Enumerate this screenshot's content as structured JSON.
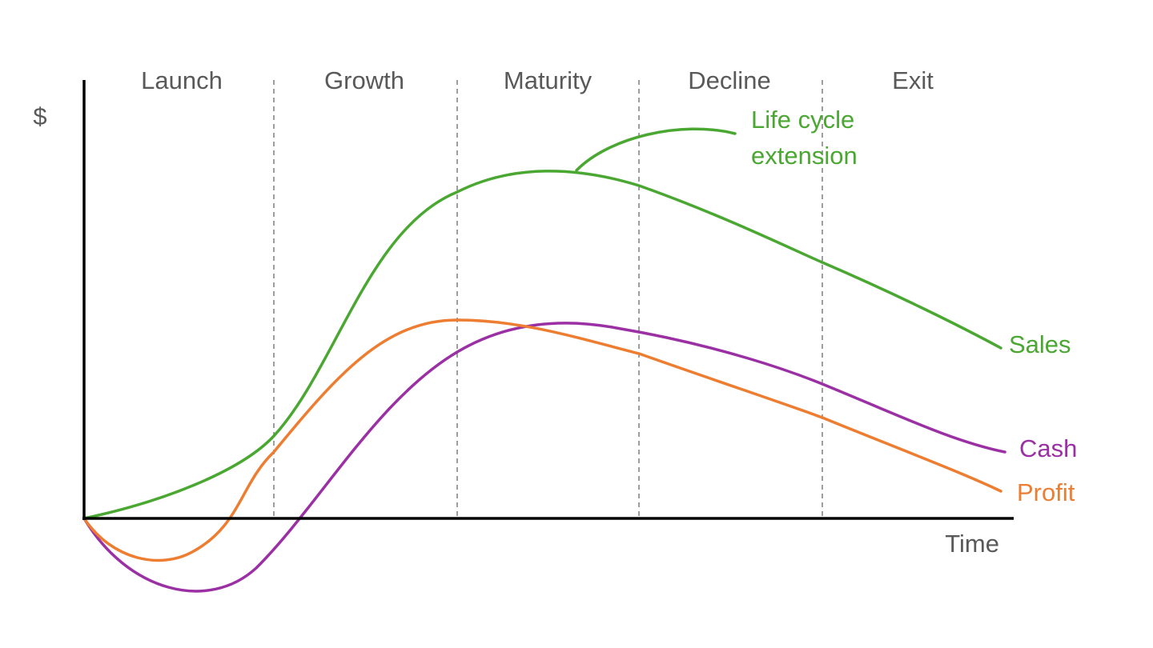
{
  "stages": [
    "Launch",
    "Growth",
    "Maturity",
    "Decline",
    "Exit"
  ],
  "axes": {
    "y_label": "$",
    "x_label": "Time"
  },
  "curves": {
    "sales": "Sales",
    "cash": "Cash",
    "profit": "Profit"
  },
  "annotation": {
    "lines": [
      "Life cycle",
      "extension"
    ]
  }
}
